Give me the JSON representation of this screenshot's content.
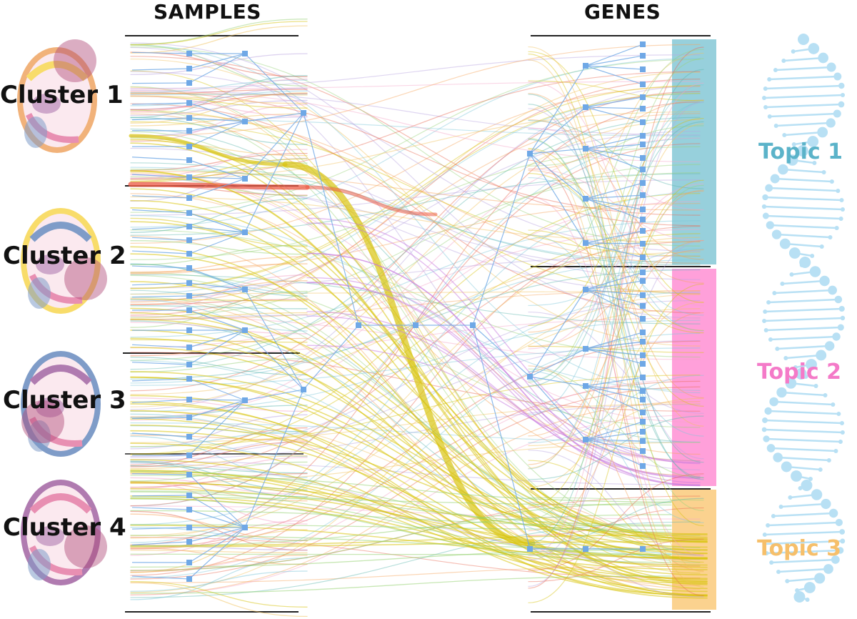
{
  "headers": {
    "samples": "SAMPLES",
    "genes": "GENES"
  },
  "clusters": [
    {
      "label": "Cluster 1"
    },
    {
      "label": "Cluster 2"
    },
    {
      "label": "Cluster 3"
    },
    {
      "label": "Cluster 4"
    }
  ],
  "topics": [
    {
      "label": "Topic 1",
      "color": "#5bb3c9"
    },
    {
      "label": "Topic 2",
      "color": "#f47ac8"
    },
    {
      "label": "Topic 3",
      "color": "#f6bf6a"
    }
  ],
  "colors": {
    "flow_yellow": "#d8c40f",
    "flow_red": "#ec5a44",
    "node_blue": "#6fa8e6",
    "topic1_band": "#8ccbd8",
    "topic2_band": "#ff8fd4",
    "topic3_band": "#fbcd83",
    "dna": "#b8e0f4",
    "brain_pink": "#e88fb2",
    "brain_orange": "#f1b27a",
    "brain_yellow": "#f8dc6a",
    "brain_blue": "#7f9cc8",
    "brain_purple": "#b07bb0"
  },
  "icons": [
    "brain-section-icon",
    "dna-helix-icon"
  ]
}
